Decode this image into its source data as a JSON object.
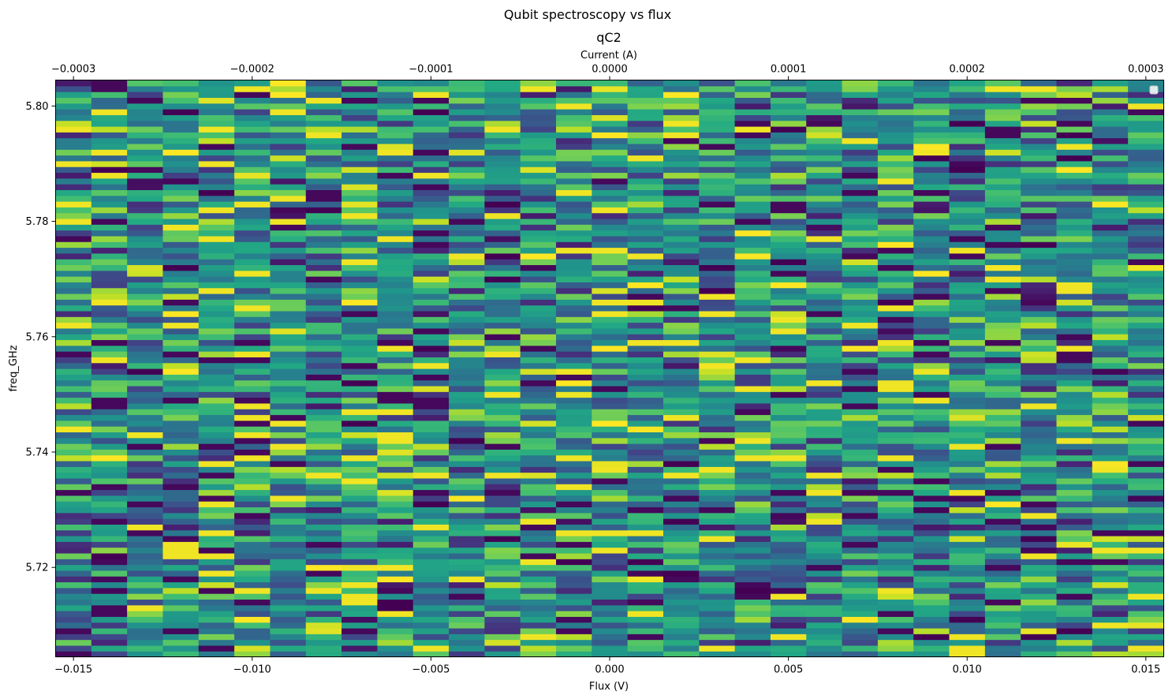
{
  "chart_data": {
    "type": "heatmap",
    "suptitle": "Qubit spectroscopy vs flux",
    "title": "qC2",
    "xlabel": "Flux (V)",
    "ylabel": "freq_GHz",
    "secondary_xlabel": "Current (A)",
    "xlim": [
      -0.0155,
      0.0155
    ],
    "ylim": [
      5.7045,
      5.8045
    ],
    "secondary_xlim": [
      -0.00031,
      0.00031
    ],
    "x_ticks": [
      -0.015,
      -0.01,
      -0.005,
      0.0,
      0.005,
      0.01,
      0.015
    ],
    "x_tick_labels": [
      "−0.015",
      "−0.010",
      "−0.005",
      "0.000",
      "0.005",
      "0.010",
      "0.015"
    ],
    "y_ticks": [
      5.72,
      5.74,
      5.76,
      5.78,
      5.8
    ],
    "y_tick_labels": [
      "5.72",
      "5.74",
      "5.76",
      "5.78",
      "5.80"
    ],
    "secondary_x_ticks": [
      -0.0003,
      -0.0002,
      -0.0001,
      0.0,
      0.0001,
      0.0002,
      0.0003
    ],
    "secondary_x_tick_labels": [
      "−0.0003",
      "−0.0002",
      "−0.0001",
      "0.0000",
      "0.0001",
      "0.0002",
      "0.0003"
    ],
    "x_steps": 31,
    "x_step": 0.001,
    "y_steps": 100,
    "y_step": 0.001,
    "colormap": "viridis",
    "grid": false,
    "legend": "upper right (empty)"
  }
}
